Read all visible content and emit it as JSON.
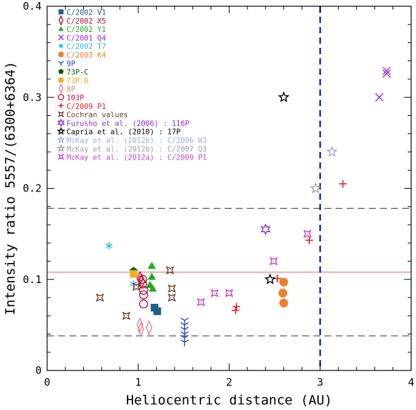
{
  "chart_data": {
    "type": "scatter",
    "xlabel": "Heliocentric distance (AU)",
    "ylabel": "Intensity ratio 5557/(6300+6364)",
    "xlim": [
      0,
      4
    ],
    "ylim": [
      0,
      0.4
    ],
    "xticks": [
      {
        "v": 0,
        "label": "0"
      },
      {
        "v": 1,
        "label": "1"
      },
      {
        "v": 2,
        "label": "2"
      },
      {
        "v": 3,
        "label": "3"
      },
      {
        "v": 4,
        "label": "4"
      }
    ],
    "yticks": [
      {
        "v": 0,
        "label": "0"
      },
      {
        "v": 0.1,
        "label": "0.1"
      },
      {
        "v": 0.2,
        "label": "0.2"
      },
      {
        "v": 0.3,
        "label": "0.3"
      },
      {
        "v": 0.4,
        "label": "0.4"
      }
    ],
    "reference_lines": [
      {
        "orientation": "horizontal",
        "value": 0.178,
        "style": "dashed",
        "color": "#555555"
      },
      {
        "orientation": "horizontal",
        "value": 0.038,
        "style": "dashed",
        "color": "#555555"
      },
      {
        "orientation": "horizontal",
        "value": 0.108,
        "style": "solid",
        "color": "#e88080"
      },
      {
        "orientation": "vertical",
        "value": 3.0,
        "style": "dashed",
        "color": "#1a2fc8"
      }
    ],
    "series": [
      {
        "name": "C/2002 V1",
        "marker": "square",
        "color": "#1f5f85",
        "points": [
          [
            1.18,
            0.069
          ],
          [
            1.21,
            0.065
          ]
        ]
      },
      {
        "name": "C/2002 X5",
        "marker": "diamond-open",
        "color": "#b01030",
        "points": [
          [
            1.02,
            0.101
          ],
          [
            1.04,
            0.098
          ]
        ]
      },
      {
        "name": "C/2002 Y1",
        "marker": "triangle",
        "color": "#22aa22",
        "points": [
          [
            1.15,
            0.115
          ],
          [
            1.15,
            0.103
          ],
          [
            1.13,
            0.094
          ],
          [
            1.16,
            0.09
          ]
        ]
      },
      {
        "name": "C/2001 Q4",
        "marker": "x",
        "color": "#8a2be2",
        "points": [
          [
            3.73,
            0.329
          ],
          [
            3.73,
            0.326
          ],
          [
            3.65,
            0.3
          ]
        ]
      },
      {
        "name": "C/2002 T7",
        "marker": "asterisk",
        "color": "#20b8e8",
        "points": [
          [
            0.68,
            0.137
          ],
          [
            0.95,
            0.095
          ]
        ]
      },
      {
        "name": "C/2003 K4",
        "marker": "circle",
        "color": "#f07f2a",
        "points": [
          [
            2.6,
            0.097
          ],
          [
            2.59,
            0.085
          ],
          [
            2.6,
            0.074
          ]
        ]
      },
      {
        "name": "9P",
        "marker": "tri-up",
        "color": "#2a3fd0",
        "points": [
          [
            1.51,
            0.055
          ],
          [
            1.51,
            0.05
          ],
          [
            1.51,
            0.045
          ],
          [
            1.51,
            0.04
          ],
          [
            1.51,
            0.036
          ],
          [
            1.51,
            0.031
          ]
        ]
      },
      {
        "name": "73P-C",
        "marker": "pentagon",
        "color": "#0a5a10",
        "points": [
          [
            0.95,
            0.109
          ]
        ]
      },
      {
        "name": "73P-B",
        "marker": "square",
        "color": "#f0b020",
        "points": [
          [
            0.95,
            0.106
          ]
        ]
      },
      {
        "name": "8P",
        "marker": "diamond-open",
        "color": "#e08888",
        "points": [
          [
            1.02,
            0.05
          ],
          [
            1.03,
            0.045
          ],
          [
            1.12,
            0.047
          ]
        ]
      },
      {
        "name": "103P",
        "marker": "circle-open",
        "color": "#c01840",
        "points": [
          [
            1.05,
            0.1
          ],
          [
            1.05,
            0.095
          ],
          [
            1.06,
            0.088
          ],
          [
            1.06,
            0.083
          ],
          [
            1.06,
            0.073
          ]
        ]
      },
      {
        "name": "C/2009 P1",
        "marker": "plus",
        "color": "#e02020",
        "points": [
          [
            3.25,
            0.205
          ],
          [
            2.88,
            0.143
          ],
          [
            2.53,
            0.101
          ],
          [
            2.08,
            0.07
          ],
          [
            2.07,
            0.066
          ]
        ]
      },
      {
        "name": "Cochran values",
        "marker": "star4-open",
        "color": "#6b4226",
        "points": [
          [
            0.58,
            0.08
          ],
          [
            0.87,
            0.06
          ],
          [
            1.35,
            0.11
          ],
          [
            1.37,
            0.09
          ],
          [
            1.37,
            0.08
          ],
          [
            0.98,
            0.092
          ]
        ]
      },
      {
        "name": "Furusho et al. (2006) : 116P",
        "marker": "star6-open",
        "color": "#8a2be2",
        "points": [
          [
            2.4,
            0.155
          ]
        ]
      },
      {
        "name": "Capria et al. (2010) : 17P",
        "marker": "star5-open",
        "color": "#000000",
        "points": [
          [
            2.6,
            0.3
          ],
          [
            2.45,
            0.1
          ]
        ]
      },
      {
        "name": "McKay et al. (2012b) : C/2006 W3",
        "marker": "star5-open",
        "color": "#9aaee8",
        "points": [
          [
            3.13,
            0.24
          ]
        ]
      },
      {
        "name": "McKay et al. (2012b) : C/2007 Q3",
        "marker": "star5-open",
        "color": "#a0a0a0",
        "points": [
          [
            2.95,
            0.2
          ]
        ]
      },
      {
        "name": "McKay et al. (2012a) : C/2009 P1",
        "marker": "star4-open",
        "color": "#d040d0",
        "points": [
          [
            2.86,
            0.15
          ],
          [
            2.49,
            0.12
          ],
          [
            2.0,
            0.085
          ],
          [
            1.84,
            0.085
          ],
          [
            1.69,
            0.075
          ]
        ]
      }
    ]
  }
}
